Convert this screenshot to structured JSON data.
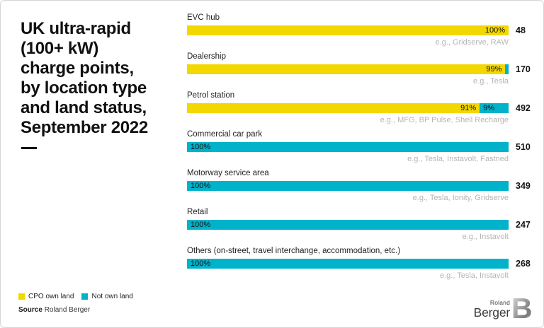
{
  "title": {
    "lines": [
      "UK ultra-rapid",
      "(100+ kW)",
      "charge points,",
      "by location type",
      "and land status,",
      "September 2022"
    ]
  },
  "chart_data": {
    "type": "bar",
    "orientation": "horizontal",
    "stacked": true,
    "title": "UK ultra-rapid (100+ kW) charge points, by location type and land status, September 2022",
    "xlabel": "",
    "ylabel": "",
    "xlim": [
      0,
      100
    ],
    "value_unit": "%",
    "grid": false,
    "legend_position": "bottom-left",
    "categories": [
      "EVC hub",
      "Dealership",
      "Petrol station",
      "Commercial car park",
      "Motorway service area",
      "Retail",
      "Others (on-street, travel interchange, accommodation, etc.)"
    ],
    "series": [
      {
        "name": "CPO own land",
        "color": "#f3d701",
        "values": [
          100,
          99,
          91,
          0,
          0,
          0,
          0
        ]
      },
      {
        "name": "Not own land",
        "color": "#00b2ca",
        "values": [
          0,
          1,
          9,
          100,
          100,
          100,
          100
        ]
      }
    ],
    "totals": [
      48,
      170,
      492,
      510,
      349,
      247,
      268
    ],
    "examples": [
      "e.g., Gridserve, RAW",
      "e.g., Tesla",
      "e.g., MFG, BP Pulse, Shell Recharge",
      "e.g., Tesla, Instavolt, Fastned",
      "e.g., Tesla, Ionity, Gridserve",
      "e.g., Instavolt",
      "e.g., Tesla, Instavolt"
    ]
  },
  "source": {
    "label": "Source",
    "value": "Roland Berger"
  },
  "logo": {
    "line1": "Roland",
    "line2": "Berger",
    "mark": "B"
  },
  "colors": {
    "cpo": "#f3d701",
    "notown": "#00b2ca",
    "example_text": "#b5b5b5",
    "label_text": "#1f1f1f",
    "title": "#111111",
    "border": "#d6d6d6",
    "logo_text": "#3c3c3c"
  }
}
